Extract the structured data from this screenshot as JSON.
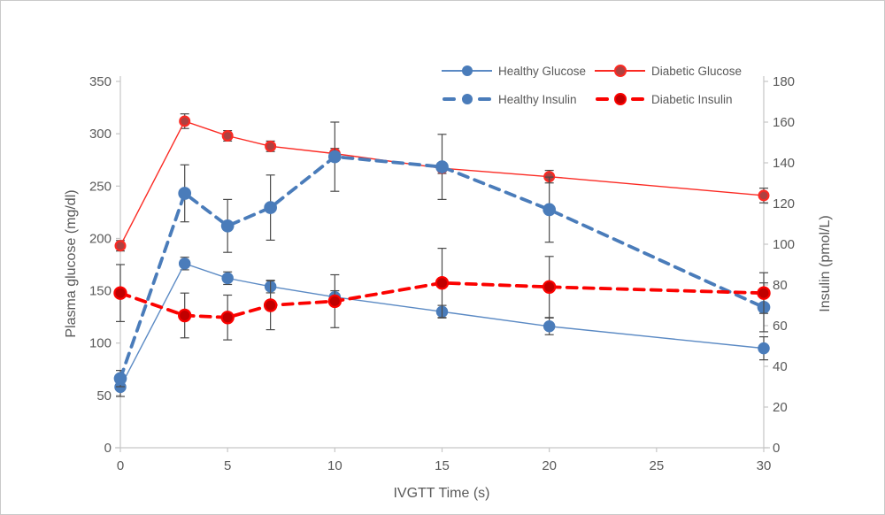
{
  "frame": {
    "background": "#ffffff",
    "border_color": "#c9c9c9",
    "text_color": "#595959",
    "axis_line_color": "#c6c6c6",
    "error_bar_color": "#4a4a4a"
  },
  "chart_data": {
    "type": "line",
    "title": "",
    "xlabel": "IVGTT Time (s)",
    "x": [
      0,
      3,
      5,
      7,
      10,
      15,
      20,
      30
    ],
    "x_axis": {
      "min": 0,
      "max": 30,
      "step": 5,
      "tick_labels": [
        "0",
        "5",
        "10",
        "15",
        "20",
        "25",
        "30"
      ]
    },
    "left_axis": {
      "label": "Plasma glucose (mg/dl)",
      "min": 0,
      "max": 350,
      "step": 50,
      "tick_labels": [
        "0",
        "50",
        "100",
        "150",
        "200",
        "250",
        "300",
        "350"
      ]
    },
    "right_axis": {
      "label": "Insulin (pmol/L)",
      "min": 0,
      "max": 180,
      "step": 20,
      "tick_labels": [
        "0",
        "20",
        "40",
        "60",
        "80",
        "100",
        "120",
        "140",
        "160",
        "180"
      ]
    },
    "grid": false,
    "legend_position": "top-right-two-rows",
    "error_bars": true,
    "series": [
      {
        "name": "Healthy Glucose",
        "axis": "left",
        "style": "solid",
        "color": "#5b8ac4",
        "marker_fill": "#4a7cba",
        "marker_stroke": "#4a7cba",
        "values": [
          58,
          176,
          162,
          154,
          144,
          130,
          116,
          95
        ],
        "errors": [
          9,
          6,
          6,
          6,
          6,
          6,
          8,
          11
        ]
      },
      {
        "name": "Diabetic Glucose",
        "axis": "left",
        "style": "solid",
        "color": "#fb2a23",
        "marker_fill": "#ae4140",
        "marker_stroke": "#fb2a23",
        "values": [
          193,
          312,
          298,
          288,
          281,
          267,
          259,
          241
        ],
        "errors": [
          5,
          7,
          5,
          5,
          5,
          5,
          6,
          7
        ]
      },
      {
        "name": "Healthy Insulin",
        "axis": "right",
        "style": "dashed",
        "color": "#4a7cba",
        "marker_fill": "#4a7cba",
        "marker_stroke": "#4a7cba",
        "values": [
          34,
          125,
          109,
          118,
          143,
          138,
          117,
          69
        ],
        "errors": [
          4,
          14,
          13,
          16,
          17,
          16,
          16,
          12
        ]
      },
      {
        "name": "Diabetic Insulin",
        "axis": "right",
        "style": "dashed",
        "color": "#fb0200",
        "marker_fill": "#c00000",
        "marker_stroke": "#fb0200",
        "values": [
          76,
          65,
          64,
          70,
          72,
          81,
          79,
          76
        ],
        "errors": [
          14,
          11,
          11,
          12,
          13,
          17,
          15,
          10
        ]
      }
    ]
  }
}
